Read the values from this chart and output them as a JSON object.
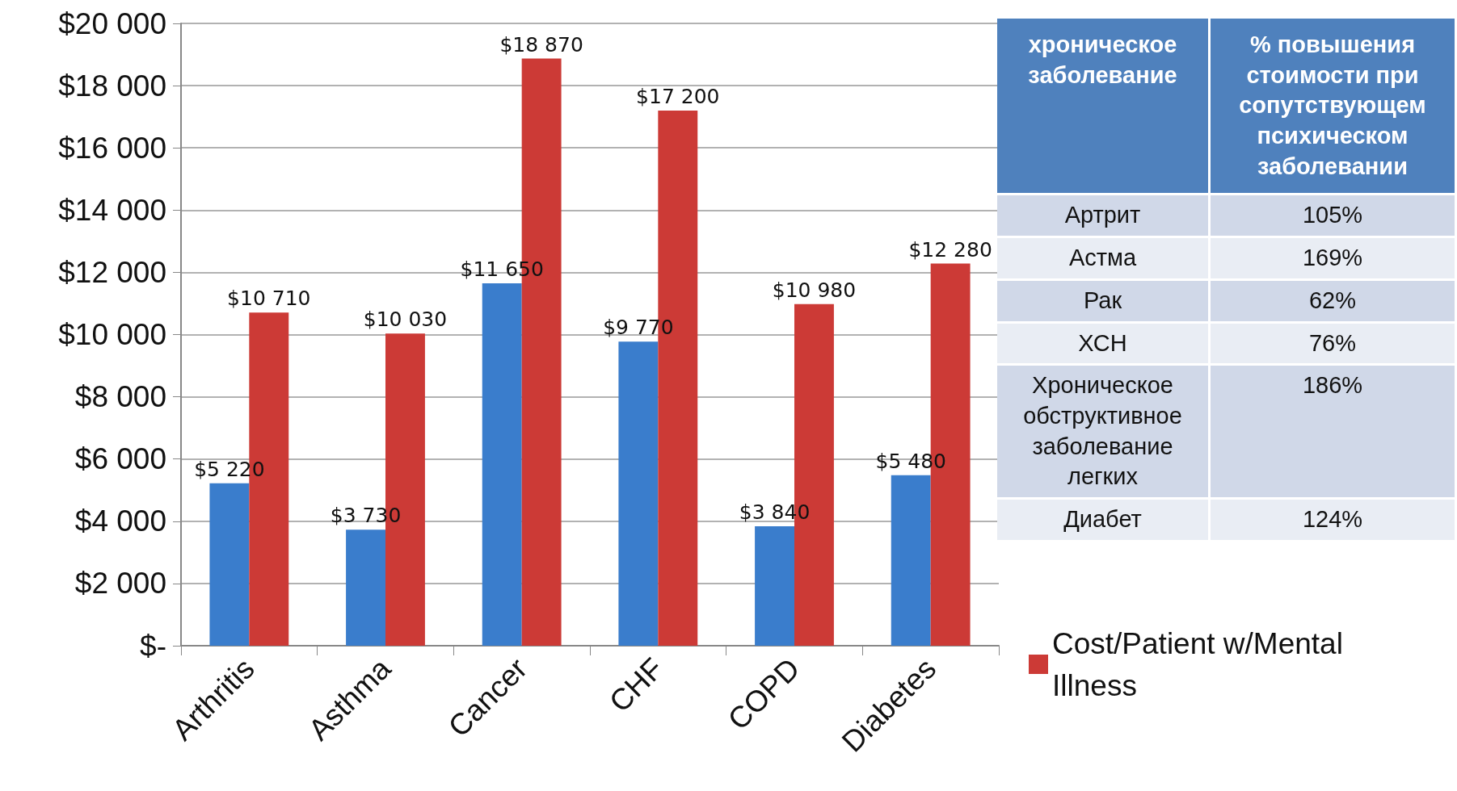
{
  "chart_data": [
    {
      "type": "bar",
      "categories": [
        "Arthritis",
        "Asthma",
        "Cancer",
        "CHF",
        "COPD",
        "Diabetes"
      ],
      "series": [
        {
          "color": "#3a7dcc",
          "values": [
            5220,
            3730,
            11650,
            9770,
            3840,
            5480
          ],
          "value_labels": [
            "$5 220",
            "$3 730",
            "$11 650",
            "$9 770",
            "$3 840",
            "$5 480"
          ]
        },
        {
          "name": "Cost/Patient w/Mental Illness",
          "color": "#cc3a36",
          "values": [
            10710,
            10030,
            18870,
            17200,
            10980,
            12280
          ],
          "value_labels": [
            "$10 710",
            "$10 030",
            "$18 870",
            "$17 200",
            "$10 980",
            "$12 280"
          ]
        }
      ],
      "ylim": [
        0,
        20000
      ],
      "yticks": [
        {
          "value": 0,
          "label": "$-"
        },
        {
          "value": 2000,
          "label": "$2 000"
        },
        {
          "value": 4000,
          "label": "$4 000"
        },
        {
          "value": 6000,
          "label": "$6 000"
        },
        {
          "value": 8000,
          "label": "$8 000"
        },
        {
          "value": 10000,
          "label": "$10 000"
        },
        {
          "value": 12000,
          "label": "$12 000"
        },
        {
          "value": 14000,
          "label": "$14 000"
        },
        {
          "value": 16000,
          "label": "$16 000"
        },
        {
          "value": 18000,
          "label": "$18 000"
        },
        {
          "value": 20000,
          "label": "$20 000"
        }
      ],
      "grid": "y",
      "legend": "bottom right"
    },
    {
      "type": "other",
      "annotations": [
        "хроническое заболевание",
        "% повышения стоимости при сопутствующем психическом заболевании",
        "Артрит",
        "105%",
        "Астма",
        "169%",
        "Рак",
        "62%",
        "ХСН",
        "76%",
        "Хроническое обструктивное заболевание легких",
        "186%",
        "Диабет",
        "124%"
      ]
    }
  ]
}
